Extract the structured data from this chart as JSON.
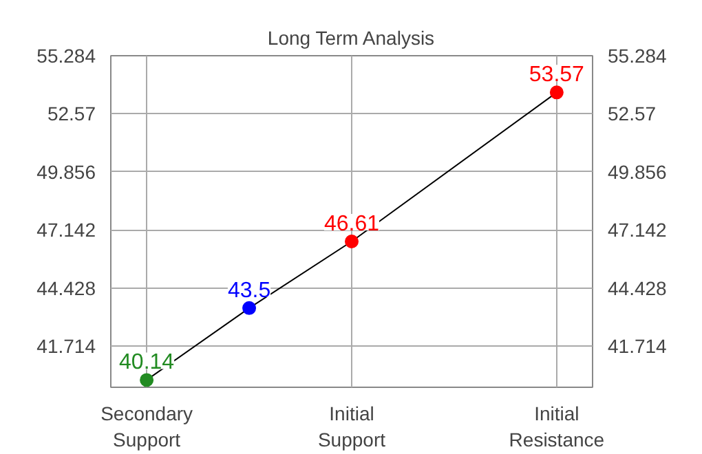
{
  "chart_data": {
    "type": "line",
    "title": "Long Term Analysis",
    "categories": [
      "Secondary\nSupport",
      null,
      "Initial\nSupport",
      null,
      "Initial\nResistance"
    ],
    "ylim": [
      39.8,
      55.284
    ],
    "yticks": [
      41.714,
      44.428,
      47.142,
      49.856,
      52.57,
      55.284
    ],
    "y2lim": [
      39.8,
      55.284
    ],
    "y2ticks": [
      41.714,
      44.428,
      47.142,
      49.856,
      52.57,
      55.284
    ],
    "series": [
      {
        "color": "#000000",
        "colors": [
          "#228b22",
          "#0000ff",
          "#ff0000",
          null,
          "#ff0000"
        ],
        "values": [
          40.14,
          43.5,
          46.61,
          null,
          53.57
        ]
      }
    ],
    "marker": "circle",
    "data_labels": true,
    "grid": true
  }
}
